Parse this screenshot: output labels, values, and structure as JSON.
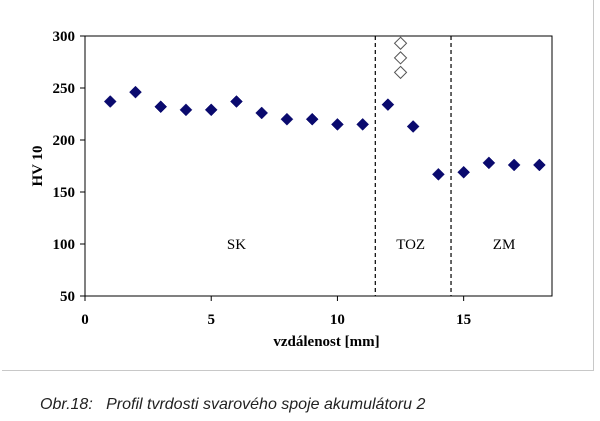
{
  "chart_data": {
    "type": "scatter",
    "xlabel": "vzdálenost [mm]",
    "ylabel": "HV 10",
    "xlim": [
      0,
      18.5
    ],
    "ylim": [
      50,
      300
    ],
    "x_ticks": [
      0,
      5,
      10,
      15
    ],
    "y_ticks": [
      50,
      100,
      150,
      200,
      250,
      300
    ],
    "grid": false,
    "series": [
      {
        "marker": "filled-diamond",
        "color": "#0a0a6e",
        "points": [
          [
            1,
            237
          ],
          [
            2,
            246
          ],
          [
            3,
            232
          ],
          [
            4,
            229
          ],
          [
            5,
            229
          ],
          [
            6,
            237
          ],
          [
            7,
            226
          ],
          [
            8,
            220
          ],
          [
            9,
            220
          ],
          [
            10,
            215
          ],
          [
            11,
            215
          ],
          [
            12,
            234
          ],
          [
            13,
            213
          ],
          [
            14,
            167
          ],
          [
            15,
            169
          ],
          [
            16,
            178
          ],
          [
            17,
            176
          ],
          [
            18,
            176
          ]
        ]
      },
      {
        "marker": "open-diamond",
        "color": "#555555",
        "points": [
          [
            12.5,
            293
          ],
          [
            12.5,
            279
          ],
          [
            12.5,
            265
          ]
        ]
      }
    ],
    "vertical_lines": [
      11.5,
      14.5
    ],
    "regions": [
      {
        "label": "SK",
        "x": 6,
        "y": 100
      },
      {
        "label": "TOZ",
        "x": 12.9,
        "y": 100
      },
      {
        "label": "ZM",
        "x": 16.6,
        "y": 100
      }
    ]
  },
  "caption": "Obr.18:   Profil tvrdosti svarového spoje akumulátoru 2"
}
